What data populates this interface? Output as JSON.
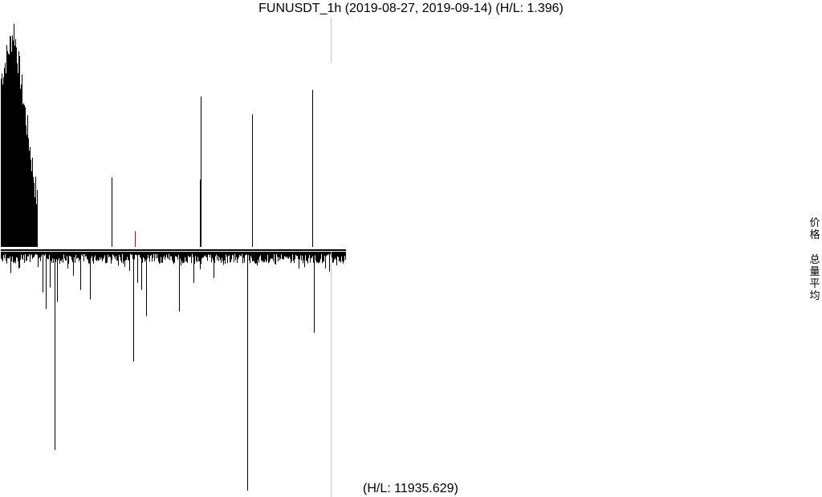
{
  "title": "FUNUSDT_1h (2019-08-27, 2019-09-14) (H/L: 1.396)",
  "volume_hl_label": "(H/L: 11935.629)",
  "legend": {
    "price": "价格",
    "volume_avg": "总量平均"
  },
  "colors": {
    "bars": "#000000",
    "highlight": "#cc0000",
    "marker": "#c8c8c8",
    "zero": "#000000"
  },
  "chart_data": {
    "type": "bar",
    "title": "FUNUSDT_1h (2019-08-27, 2019-09-14) (H/L: 1.396)",
    "x_range": [
      "2019-08-27",
      "2019-09-14"
    ],
    "bar_count": 430,
    "panels": [
      {
        "name": "价格",
        "hl_ratio": 1.396,
        "ylim": [
          0,
          1
        ],
        "dense_block": {
          "bars": 46,
          "peak_bar": 16,
          "peak": 0.97,
          "left": 0.75,
          "right": 0.2,
          "jitter": 0.07
        },
        "spikes": [
          {
            "bar": 138,
            "value": 0.31,
            "color": "bars"
          },
          {
            "bar": 167,
            "value": 0.07,
            "color": "highlight"
          },
          {
            "bar": 248,
            "value": 0.3,
            "color": "bars"
          },
          {
            "bar": 249,
            "value": 0.67,
            "color": "bars"
          },
          {
            "bar": 313,
            "value": 0.59,
            "color": "bars"
          },
          {
            "bar": 388,
            "value": 0.7,
            "color": "bars"
          }
        ]
      },
      {
        "name": "总量平均",
        "hl_ratio": 11935.629,
        "ylim": [
          0,
          1
        ],
        "base_level": 0.03,
        "spikes": [
          {
            "bar": 12,
            "value": 0.09
          },
          {
            "bar": 22,
            "value": 0.07
          },
          {
            "bar": 52,
            "value": 0.17
          },
          {
            "bar": 56,
            "value": 0.24
          },
          {
            "bar": 61,
            "value": 0.15
          },
          {
            "bar": 67,
            "value": 0.83
          },
          {
            "bar": 70,
            "value": 0.21
          },
          {
            "bar": 90,
            "value": 0.1
          },
          {
            "bar": 99,
            "value": 0.16
          },
          {
            "bar": 111,
            "value": 0.2
          },
          {
            "bar": 160,
            "value": 0.08
          },
          {
            "bar": 165,
            "value": 0.46
          },
          {
            "bar": 170,
            "value": 0.13
          },
          {
            "bar": 175,
            "value": 0.16
          },
          {
            "bar": 181,
            "value": 0.27
          },
          {
            "bar": 222,
            "value": 0.25
          },
          {
            "bar": 240,
            "value": 0.13
          },
          {
            "bar": 265,
            "value": 0.11
          },
          {
            "bar": 307,
            "value": 1.0
          },
          {
            "bar": 390,
            "value": 0.34
          },
          {
            "bar": 404,
            "value": 0.07
          }
        ]
      }
    ],
    "markers": [
      {
        "bar": 411
      }
    ],
    "grid": false
  }
}
